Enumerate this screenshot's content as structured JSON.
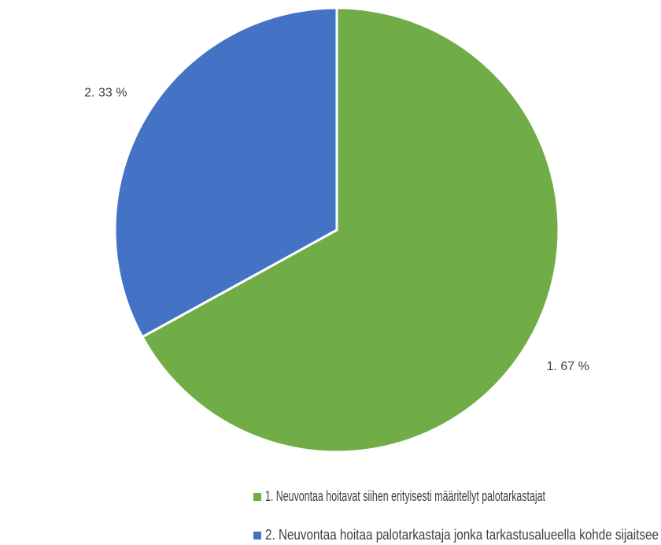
{
  "chart_data": {
    "type": "pie",
    "categories": [
      "1. Neuvontaa hoitavat siihen erityisesti määritellyt palotarkastajat",
      "2. Neuvontaa hoitaa palotarkastaja jonka tarkastusalueella kohde sijaitsee"
    ],
    "values": [
      67,
      33
    ],
    "value_labels": [
      "1. 67 %",
      "2. 33 %"
    ],
    "colors": [
      "#70ad47",
      "#4472c4"
    ],
    "legend": "bottom"
  }
}
